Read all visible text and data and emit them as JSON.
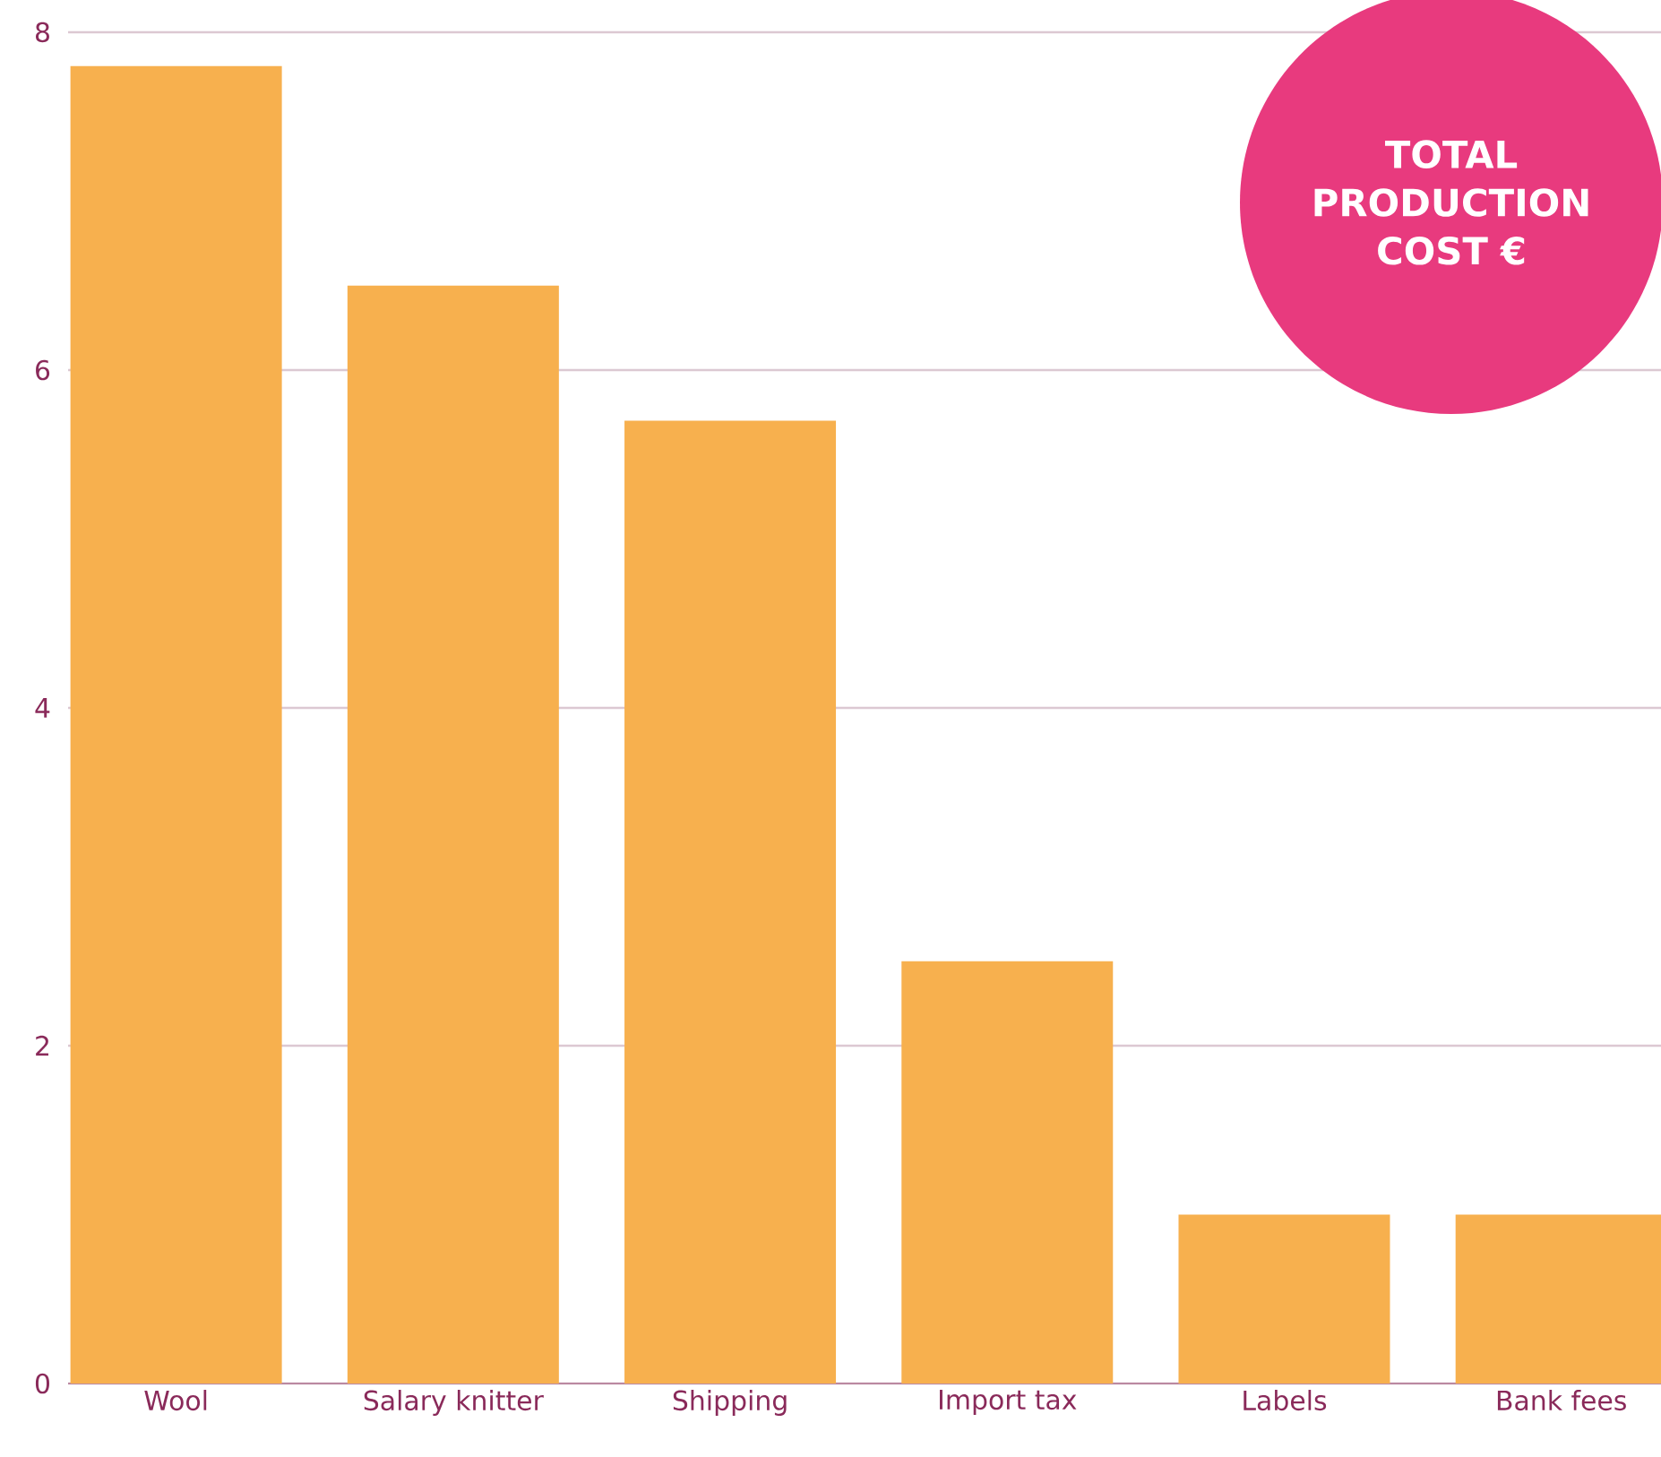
{
  "chart_data": {
    "type": "bar",
    "categories": [
      "Wool",
      "Salary knitter",
      "Shipping",
      "Import tax",
      "Labels",
      "Bank fees"
    ],
    "values": [
      7.8,
      6.5,
      5.7,
      2.5,
      1,
      1
    ],
    "color": "#f7b04e",
    "ylim": [
      0,
      8
    ],
    "yticks": [
      0,
      2,
      4,
      6,
      8
    ],
    "grid": "y",
    "annotations": [
      "TOTAL PRODUCTION COST €"
    ]
  }
}
